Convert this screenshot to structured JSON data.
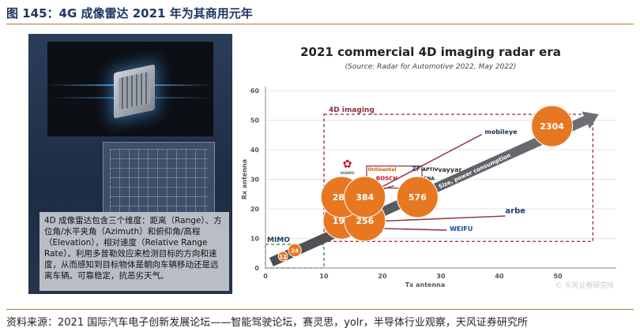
{
  "figure_title": "图 145：4G 成像雷达 2021 年为其商用元年",
  "source_note": "资料来源：2021 国际汽车电子创新发展论坛——智能驾驶论坛，赛灵思，yolr，半导体行业观察，天风证券研究所",
  "left_panel": {
    "description": "4D 成像雷达包含三个维度：距离（Range）、方位角/水平夹角（Azimuth）和俯仰角/高程（Elevation），相对速度（Relative Range Rate）。利用多普勒效应来检测目标的方向和速度，从而感知到目标物体是朝向车辆移动还是远离车辆。可靠稳定，抗恶劣天气。"
  },
  "chart_data": {
    "type": "scatter",
    "title": "2021 commercial 4D imaging radar era",
    "subtitle": "(Source: Radar for Automotive 2022, May 2022)",
    "xlabel": "Tx antenna",
    "ylabel": "Rx antenna",
    "xlim": [
      0,
      60
    ],
    "ylim": [
      0,
      60
    ],
    "xticks": [
      0,
      10,
      20,
      30,
      40,
      50
    ],
    "yticks": [
      0,
      10,
      20,
      30,
      40,
      50,
      60
    ],
    "points": [
      {
        "label": "12",
        "x": 3,
        "y": 4,
        "color": "#e87722"
      },
      {
        "label": "24",
        "x": 5,
        "y": 6,
        "color": "#e87722"
      },
      {
        "label": "192",
        "x": 13,
        "y": 16,
        "color": "#e87722"
      },
      {
        "label": "256",
        "x": 17,
        "y": 16,
        "color": "#e87722"
      },
      {
        "label": "288",
        "x": 13,
        "y": 24,
        "color": "#e87722"
      },
      {
        "label": "384",
        "x": 17,
        "y": 24,
        "color": "#e87722"
      },
      {
        "label": "576",
        "x": 26,
        "y": 24,
        "color": "#e87722"
      },
      {
        "label": "2304",
        "x": 49,
        "y": 48,
        "color": "#e87722"
      }
    ],
    "regions": [
      {
        "label": "MIMO",
        "x": [
          0,
          10
        ],
        "y": [
          0,
          8
        ],
        "color": "#2e7d5b"
      },
      {
        "label": "4D imaging",
        "x": [
          10,
          56
        ],
        "y": [
          9,
          52
        ],
        "color": "#8b2e3c"
      }
    ],
    "trend_label": "Size, power consumption",
    "companies": {
      "continental": "Ontinental",
      "zf": "ZF",
      "aptiv": "·APTIV·",
      "bosch": "BOSCH",
      "magna": "MAGNA",
      "huawei": "HUAWEI",
      "mobileye": "mobileye",
      "vayyar": "vayyar",
      "arbe": "arbe",
      "weifu": "WEIFU"
    },
    "watermark": "© 天风证券研究所"
  }
}
